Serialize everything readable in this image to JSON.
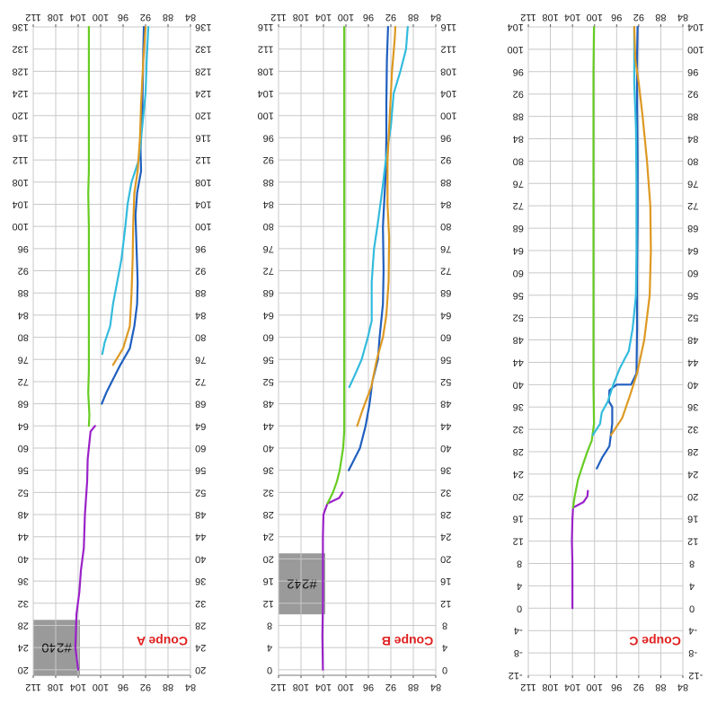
{
  "colors": {
    "purple": "#9a22c8",
    "green": "#66cc22",
    "blue": "#1f5fbf",
    "cyan": "#33bbdd",
    "orange": "#dd9922",
    "label": "#e02020",
    "grid": "#c8c8c8",
    "box": "#9a9a9a"
  },
  "chart_data": [
    {
      "type": "line",
      "panel": "A",
      "label": "Coupe A",
      "box_label": "#240",
      "box_range": [
        18,
        29
      ],
      "y_range": [
        19,
        136
      ],
      "y_ticks": [
        20,
        24,
        28,
        32,
        36,
        40,
        44,
        48,
        52,
        56,
        60,
        64,
        68,
        72,
        76,
        80,
        84,
        88,
        92,
        96,
        100,
        104,
        108,
        112,
        116,
        120,
        124,
        128,
        132,
        136
      ],
      "x_range": [
        84,
        112
      ],
      "x_ticks": [
        84,
        88,
        92,
        96,
        100,
        104,
        108,
        112
      ],
      "x_reversed": true,
      "grid": true,
      "series": [
        {
          "color_key": "purple",
          "points": [
            [
              104,
              20
            ],
            [
              104.5,
              24
            ],
            [
              104.3,
              30
            ],
            [
              103.8,
              34
            ],
            [
              103.5,
              38
            ],
            [
              103,
              42
            ],
            [
              102.8,
              48
            ],
            [
              102.4,
              54
            ],
            [
              102.3,
              58
            ],
            [
              102,
              61
            ],
            [
              101.8,
              63
            ],
            [
              101,
              64
            ]
          ]
        },
        {
          "color_key": "green",
          "points": [
            [
              102.1,
              64
            ],
            [
              102,
              66
            ],
            [
              102.2,
              70
            ],
            [
              102.1,
              74
            ],
            [
              102.1,
              80
            ],
            [
              102.1,
              90
            ],
            [
              102.1,
              100
            ],
            [
              102.2,
              106
            ],
            [
              102.1,
              110
            ],
            [
              102.1,
              120
            ],
            [
              102.1,
              136
            ]
          ]
        },
        {
          "color_key": "blue",
          "points": [
            [
              99.8,
              68
            ],
            [
              99,
              70
            ],
            [
              98,
              72
            ],
            [
              96.5,
              75
            ],
            [
              94.8,
              78
            ],
            [
              94,
              82
            ],
            [
              93.5,
              86
            ],
            [
              93.4,
              90
            ],
            [
              93.6,
              96
            ],
            [
              93.8,
              102
            ],
            [
              93.5,
              106
            ],
            [
              92.8,
              110
            ],
            [
              92.9,
              114
            ],
            [
              92.6,
              120
            ],
            [
              92.5,
              126
            ],
            [
              92.4,
              132
            ],
            [
              92.3,
              136
            ]
          ]
        },
        {
          "color_key": "cyan",
          "points": [
            [
              99.7,
              77
            ],
            [
              99.3,
              79
            ],
            [
              98.3,
              82
            ],
            [
              97.8,
              86
            ],
            [
              96.3,
              94
            ],
            [
              95.6,
              100
            ],
            [
              95.2,
              104
            ],
            [
              94.5,
              108
            ],
            [
              93.2,
              112
            ],
            [
              92.6,
              118
            ],
            [
              92,
              124
            ],
            [
              91.8,
              130
            ],
            [
              91.5,
              136
            ]
          ]
        },
        {
          "color_key": "orange",
          "points": [
            [
              97.8,
              75
            ],
            [
              96,
              78
            ],
            [
              94.8,
              82
            ],
            [
              94.5,
              88
            ],
            [
              94.3,
              94
            ],
            [
              94.2,
              100
            ],
            [
              94,
              106
            ],
            [
              93.4,
              110
            ],
            [
              93,
              116
            ],
            [
              92.8,
              122
            ],
            [
              92.4,
              130
            ],
            [
              92,
              136
            ]
          ]
        }
      ]
    },
    {
      "type": "line",
      "panel": "B",
      "label": "Coupe B",
      "box_label": "#242",
      "box_range": [
        10,
        21
      ],
      "y_range": [
        -1,
        116
      ],
      "y_ticks": [
        0,
        4,
        8,
        12,
        16,
        20,
        24,
        28,
        32,
        36,
        40,
        44,
        48,
        52,
        56,
        60,
        64,
        68,
        72,
        76,
        80,
        84,
        88,
        92,
        96,
        100,
        104,
        108,
        112,
        116
      ],
      "x_range": [
        84,
        112
      ],
      "x_ticks": [
        84,
        88,
        92,
        96,
        100,
        104,
        108,
        112
      ],
      "x_reversed": true,
      "grid": true,
      "series": [
        {
          "color_key": "purple",
          "points": [
            [
              104.1,
              0
            ],
            [
              104.2,
              6
            ],
            [
              104.1,
              12
            ],
            [
              104.1,
              18
            ],
            [
              104.1,
              24
            ],
            [
              104,
              28
            ],
            [
              103.3,
              30
            ],
            [
              101.2,
              31
            ],
            [
              100.6,
              32
            ]
          ]
        },
        {
          "color_key": "green",
          "points": [
            [
              103.3,
              30
            ],
            [
              102.3,
              32
            ],
            [
              101.6,
              34
            ],
            [
              101.1,
              36
            ],
            [
              100.5,
              40
            ],
            [
              100.3,
              43
            ],
            [
              100.3,
              50
            ],
            [
              100.3,
              60
            ],
            [
              100.3,
              80
            ],
            [
              100.3,
              100
            ],
            [
              100.3,
              116
            ]
          ]
        },
        {
          "color_key": "blue",
          "points": [
            [
              99.5,
              36
            ],
            [
              98.5,
              38
            ],
            [
              97.5,
              40
            ],
            [
              96.5,
              44
            ],
            [
              95.8,
              48
            ],
            [
              95.3,
              52
            ],
            [
              94.3,
              56
            ],
            [
              94,
              60
            ],
            [
              93.4,
              66
            ],
            [
              93.3,
              72
            ],
            [
              93.4,
              80
            ],
            [
              92.9,
              90
            ],
            [
              92.8,
              96
            ],
            [
              92.8,
              102
            ],
            [
              92.7,
              110
            ],
            [
              92.5,
              116
            ]
          ]
        },
        {
          "color_key": "cyan",
          "points": [
            [
              99.4,
              51
            ],
            [
              98.5,
              53
            ],
            [
              97.2,
              56
            ],
            [
              96.1,
              60
            ],
            [
              95.4,
              63
            ],
            [
              95.4,
              70
            ],
            [
              95,
              76
            ],
            [
              94.4,
              80
            ],
            [
              93.6,
              86
            ],
            [
              92.9,
              92
            ],
            [
              92,
              98
            ],
            [
              91.5,
              104
            ],
            [
              90.3,
              108
            ],
            [
              89.3,
              112
            ],
            [
              89,
              116
            ]
          ]
        },
        {
          "color_key": "orange",
          "points": [
            [
              98,
              44
            ],
            [
              97,
              47
            ],
            [
              95.5,
              51
            ],
            [
              94.5,
              56
            ],
            [
              93.4,
              60
            ],
            [
              92.8,
              64
            ],
            [
              92.4,
              70
            ],
            [
              92.3,
              78
            ],
            [
              92.6,
              84
            ],
            [
              92.6,
              92
            ],
            [
              92.2,
              100
            ],
            [
              91.8,
              108
            ],
            [
              91.3,
              114
            ],
            [
              91.2,
              116
            ]
          ]
        }
      ]
    },
    {
      "type": "line",
      "panel": "C",
      "label": "Coupe C",
      "y_range": [
        -12,
        104
      ],
      "y_ticks": [
        -12,
        -8,
        -4,
        0,
        4,
        8,
        12,
        16,
        20,
        24,
        28,
        32,
        36,
        40,
        44,
        48,
        52,
        56,
        60,
        64,
        68,
        72,
        76,
        80,
        84,
        88,
        92,
        96,
        100,
        104
      ],
      "x_range": [
        84,
        112
      ],
      "x_ticks": [
        84,
        88,
        92,
        96,
        100,
        104,
        108,
        112
      ],
      "x_reversed": true,
      "grid": true,
      "series": [
        {
          "color_key": "purple",
          "points": [
            [
              104,
              0
            ],
            [
              104,
              4
            ],
            [
              104,
              8
            ],
            [
              104.1,
              12
            ],
            [
              104,
              16
            ],
            [
              103.9,
              18
            ],
            [
              102,
              19
            ],
            [
              101.3,
              20
            ],
            [
              101.2,
              21
            ]
          ]
        },
        {
          "color_key": "green",
          "points": [
            [
              103.9,
              18
            ],
            [
              103.6,
              20
            ],
            [
              103,
              23
            ],
            [
              102,
              26
            ],
            [
              101.3,
              28
            ],
            [
              100.5,
              30
            ],
            [
              100.1,
              33
            ],
            [
              100.2,
              40
            ],
            [
              100.2,
              60
            ],
            [
              100.2,
              80
            ],
            [
              100.2,
              96
            ],
            [
              100.1,
              104
            ]
          ]
        },
        {
          "color_key": "blue",
          "points": [
            [
              99.6,
              25
            ],
            [
              98.6,
              27
            ],
            [
              97.3,
              29
            ],
            [
              96.8,
              33
            ],
            [
              96.8,
              36
            ],
            [
              97.4,
              37
            ],
            [
              97.3,
              39
            ],
            [
              96,
              40
            ],
            [
              93.4,
              40
            ],
            [
              92.4,
              42
            ],
            [
              92.3,
              50
            ],
            [
              92.3,
              60
            ],
            [
              92.2,
              70
            ],
            [
              92.2,
              80
            ],
            [
              92.3,
              90
            ],
            [
              92.3,
              98
            ],
            [
              92.2,
              104
            ]
          ]
        },
        {
          "color_key": "cyan",
          "points": [
            [
              100.3,
              31
            ],
            [
              99,
              33
            ],
            [
              98.7,
              35
            ],
            [
              97.6,
              37
            ],
            [
              96.6,
              40
            ],
            [
              95.4,
              43
            ],
            [
              93.8,
              46
            ],
            [
              93.1,
              50
            ],
            [
              92.5,
              56
            ],
            [
              92.4,
              64
            ],
            [
              92.4,
              76
            ],
            [
              92.5,
              86
            ],
            [
              92.8,
              94
            ],
            [
              92.8,
              100
            ],
            [
              92.8,
              104
            ]
          ]
        },
        {
          "color_key": "orange",
          "points": [
            [
              97,
              31
            ],
            [
              95,
              34
            ],
            [
              93.6,
              38
            ],
            [
              92.3,
              42
            ],
            [
              91,
              48
            ],
            [
              90,
              56
            ],
            [
              89.8,
              64
            ],
            [
              89.9,
              72
            ],
            [
              90.5,
              80
            ],
            [
              91.3,
              88
            ],
            [
              92,
              94
            ],
            [
              92.6,
              98
            ],
            [
              92.8,
              104
            ]
          ]
        }
      ]
    }
  ]
}
